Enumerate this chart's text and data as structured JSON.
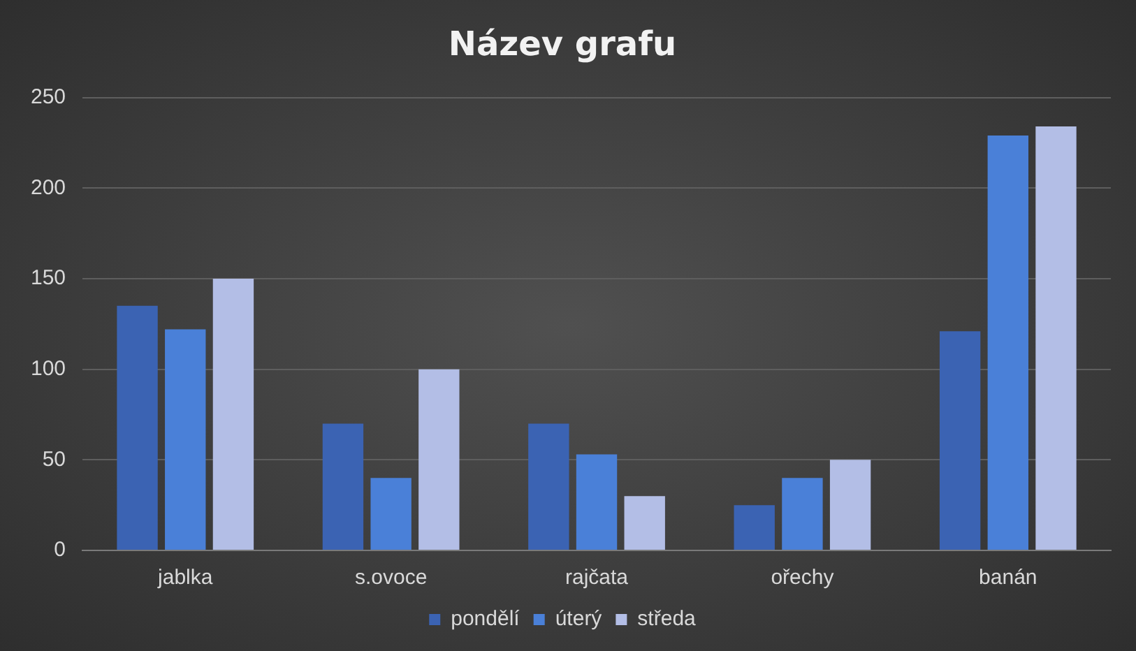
{
  "chart_data": {
    "type": "bar",
    "title": "Název grafu",
    "categories": [
      "jablka",
      "s.ovoce",
      "rajčata",
      "ořechy",
      "banán"
    ],
    "series": [
      {
        "name": "pondělí",
        "color": "#3b63b3",
        "values": [
          135,
          70,
          70,
          25,
          121
        ]
      },
      {
        "name": "úterý",
        "color": "#4a80d8",
        "values": [
          122,
          40,
          53,
          40,
          229
        ]
      },
      {
        "name": "středa",
        "color": "#b3bee6",
        "values": [
          150,
          100,
          30,
          50,
          234
        ]
      }
    ],
    "ylim": [
      0,
      250
    ],
    "yticks": [
      0,
      50,
      100,
      150,
      200,
      250
    ],
    "grid": "y",
    "legend": "bottom"
  }
}
